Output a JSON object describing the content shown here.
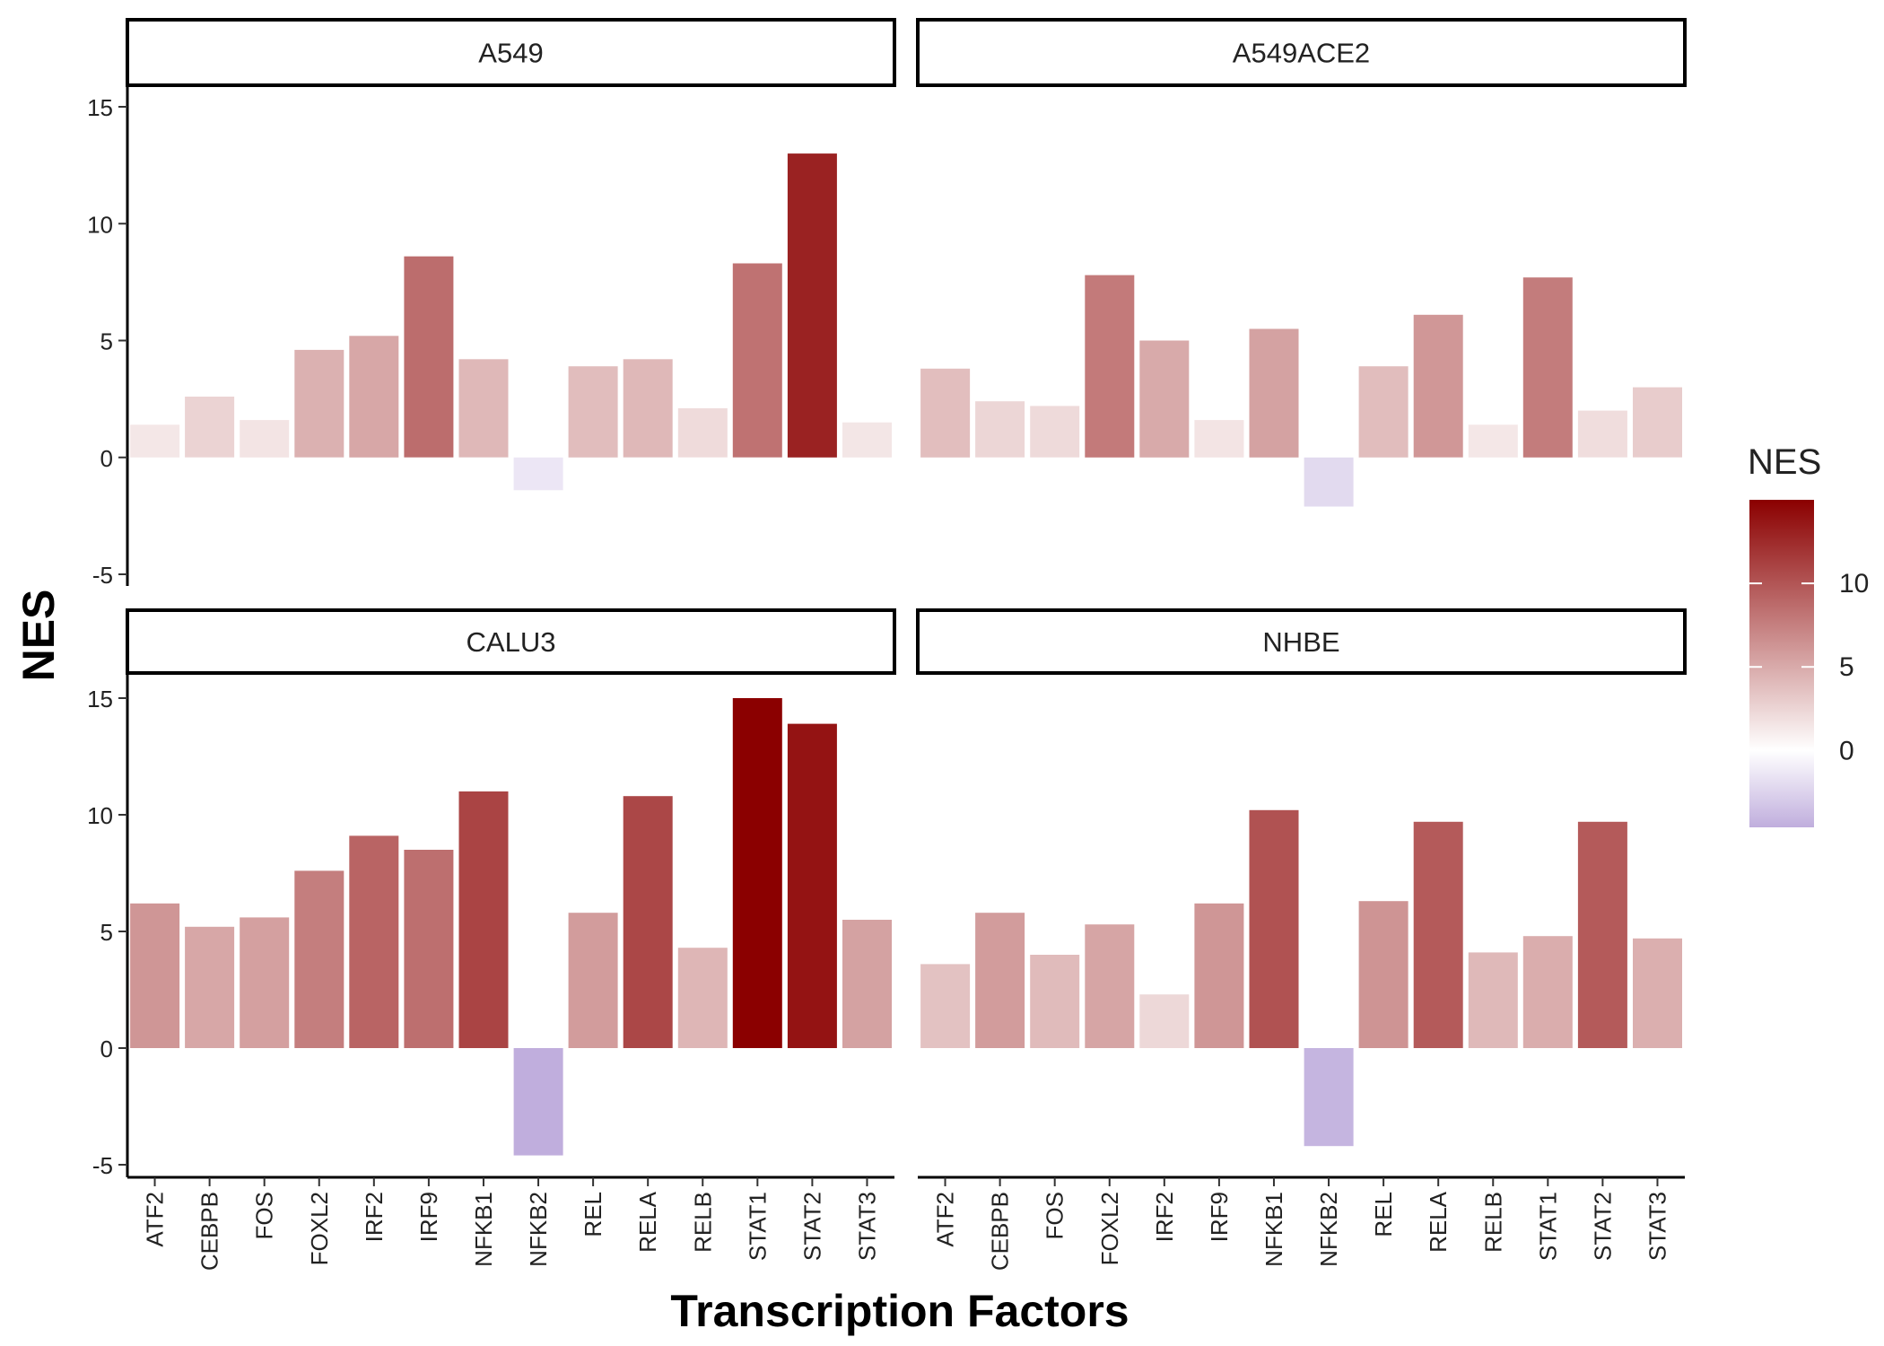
{
  "chart_data": {
    "type": "bar",
    "layout": "facet-grid-2x2",
    "xlabel": "Transcription Factors",
    "ylabel": "NES",
    "ylim": [
      -5,
      15
    ],
    "yticks": [
      -5,
      0,
      5,
      10,
      15
    ],
    "categories": [
      "ATF2",
      "CEBPB",
      "FOS",
      "FOXL2",
      "IRF2",
      "IRF9",
      "NFKB1",
      "NFKB2",
      "REL",
      "RELA",
      "RELB",
      "STAT1",
      "STAT2",
      "STAT3"
    ],
    "panels": [
      {
        "name": "A549",
        "values": [
          1.4,
          2.6,
          1.6,
          4.6,
          5.2,
          8.6,
          4.2,
          -1.4,
          3.9,
          4.2,
          2.1,
          8.3,
          13.0,
          1.5
        ]
      },
      {
        "name": "A549ACE2",
        "values": [
          3.8,
          2.4,
          2.2,
          7.8,
          5.0,
          1.6,
          5.5,
          -2.1,
          3.9,
          6.1,
          1.4,
          7.7,
          2.0,
          3.0
        ]
      },
      {
        "name": "CALU3",
        "values": [
          6.2,
          5.2,
          5.6,
          7.6,
          9.1,
          8.5,
          11.0,
          -4.6,
          5.8,
          10.8,
          4.3,
          15.0,
          13.9,
          5.5
        ]
      },
      {
        "name": "NHBE",
        "values": [
          3.6,
          5.8,
          4.0,
          5.3,
          2.3,
          6.2,
          10.2,
          -4.2,
          6.3,
          9.7,
          4.1,
          4.8,
          9.7,
          4.7
        ]
      }
    ],
    "legend": {
      "title": "NES",
      "position": "right",
      "ticks": [
        0,
        5,
        10
      ],
      "range": [
        -4.6,
        15
      ],
      "colors": {
        "low": "#c0aedd",
        "mid": "#ffffff",
        "high": "#8b0000"
      }
    },
    "grid": false
  }
}
